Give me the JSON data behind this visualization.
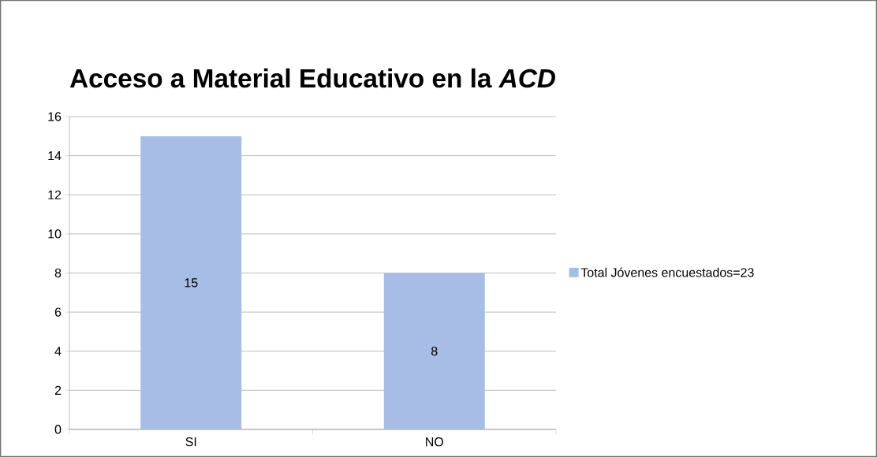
{
  "chart_data": {
    "type": "bar",
    "title": "Acceso a Material Educativo en la *ACD*",
    "categories": [
      "SI",
      "NO"
    ],
    "series": [
      {
        "name": "Total Jóvenes encuestados=23",
        "color": "#a7bde5",
        "values": [
          15,
          8
        ]
      }
    ],
    "value_labels": [
      "15",
      "8"
    ],
    "ylim": [
      0,
      16
    ],
    "yticks": [
      0,
      2,
      4,
      6,
      8,
      10,
      12,
      14,
      16
    ],
    "grid": "y",
    "legend": "right"
  }
}
